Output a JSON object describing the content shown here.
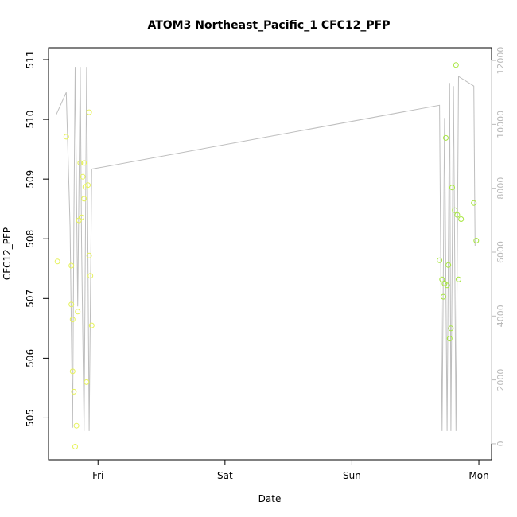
{
  "chart_data": {
    "type": "scatter",
    "title": "ATOM3 Northeast_Pacific_1 CFC12_PFP",
    "xlabel": "Date",
    "ylabel": "CFC12_PFP",
    "x_ticks": [
      "Fri",
      "Sat",
      "Sun",
      "Mon"
    ],
    "x_tick_values": [
      1,
      2,
      3,
      4
    ],
    "xlim": [
      0.61,
      4.1
    ],
    "ylim": [
      504.3,
      511.2
    ],
    "y_ticks": [
      505,
      506,
      507,
      508,
      509,
      510,
      511
    ],
    "y2lim": [
      -500,
      12400
    ],
    "y2_ticks": [
      0,
      2000,
      4000,
      6000,
      8000,
      10000,
      12000
    ],
    "grid": false,
    "colors": {
      "line": "#bebebe",
      "points_early": "#e6f25a",
      "points_late": "#a6e63e",
      "axis": "#000000",
      "right_axis": "#bbbbbb"
    },
    "series": [
      {
        "values": [
          [
            0.68,
            507.62
          ],
          [
            0.75,
            509.71
          ],
          [
            0.79,
            507.55
          ],
          [
            0.79,
            506.9
          ],
          [
            0.8,
            505.78
          ],
          [
            0.8,
            506.65
          ],
          [
            0.81,
            505.44
          ],
          [
            0.82,
            504.52
          ],
          [
            0.83,
            504.87
          ],
          [
            0.84,
            506.78
          ],
          [
            0.85,
            508.31
          ],
          [
            0.86,
            509.27
          ],
          [
            0.87,
            508.36
          ],
          [
            0.88,
            509.04
          ],
          [
            0.89,
            508.67
          ],
          [
            0.89,
            509.27
          ],
          [
            0.9,
            508.87
          ],
          [
            0.91,
            505.6
          ],
          [
            0.92,
            508.9
          ],
          [
            0.93,
            510.12
          ],
          [
            0.93,
            507.72
          ],
          [
            0.94,
            507.38
          ],
          [
            0.95,
            506.55
          ],
          [
            3.69,
            507.64
          ],
          [
            3.71,
            507.32
          ],
          [
            3.72,
            507.03
          ],
          [
            3.73,
            507.25
          ],
          [
            3.74,
            509.69
          ],
          [
            3.75,
            507.22
          ],
          [
            3.76,
            507.56
          ],
          [
            3.77,
            506.33
          ],
          [
            3.78,
            506.5
          ],
          [
            3.79,
            508.86
          ],
          [
            3.81,
            508.48
          ],
          [
            3.82,
            510.91
          ],
          [
            3.83,
            508.4
          ],
          [
            3.84,
            507.32
          ],
          [
            3.86,
            508.33
          ],
          [
            3.96,
            508.6
          ],
          [
            3.98,
            507.97
          ]
        ]
      },
      {
        "values": [
          [
            0.67,
            10300
          ],
          [
            0.75,
            11000
          ],
          [
            0.78,
            6800
          ],
          [
            0.8,
            500
          ],
          [
            0.81,
            7000
          ],
          [
            0.82,
            11800
          ],
          [
            0.84,
            4300
          ],
          [
            0.86,
            11800
          ],
          [
            0.87,
            6400
          ],
          [
            0.89,
            400
          ],
          [
            0.91,
            11800
          ],
          [
            0.93,
            400
          ],
          [
            0.95,
            8600
          ],
          [
            3.69,
            10600
          ],
          [
            3.71,
            400
          ],
          [
            3.73,
            10200
          ],
          [
            3.75,
            400
          ],
          [
            3.77,
            11300
          ],
          [
            3.78,
            400
          ],
          [
            3.8,
            11200
          ],
          [
            3.82,
            400
          ],
          [
            3.84,
            11500
          ],
          [
            3.96,
            11200
          ],
          [
            3.97,
            6200
          ]
        ]
      }
    ]
  }
}
